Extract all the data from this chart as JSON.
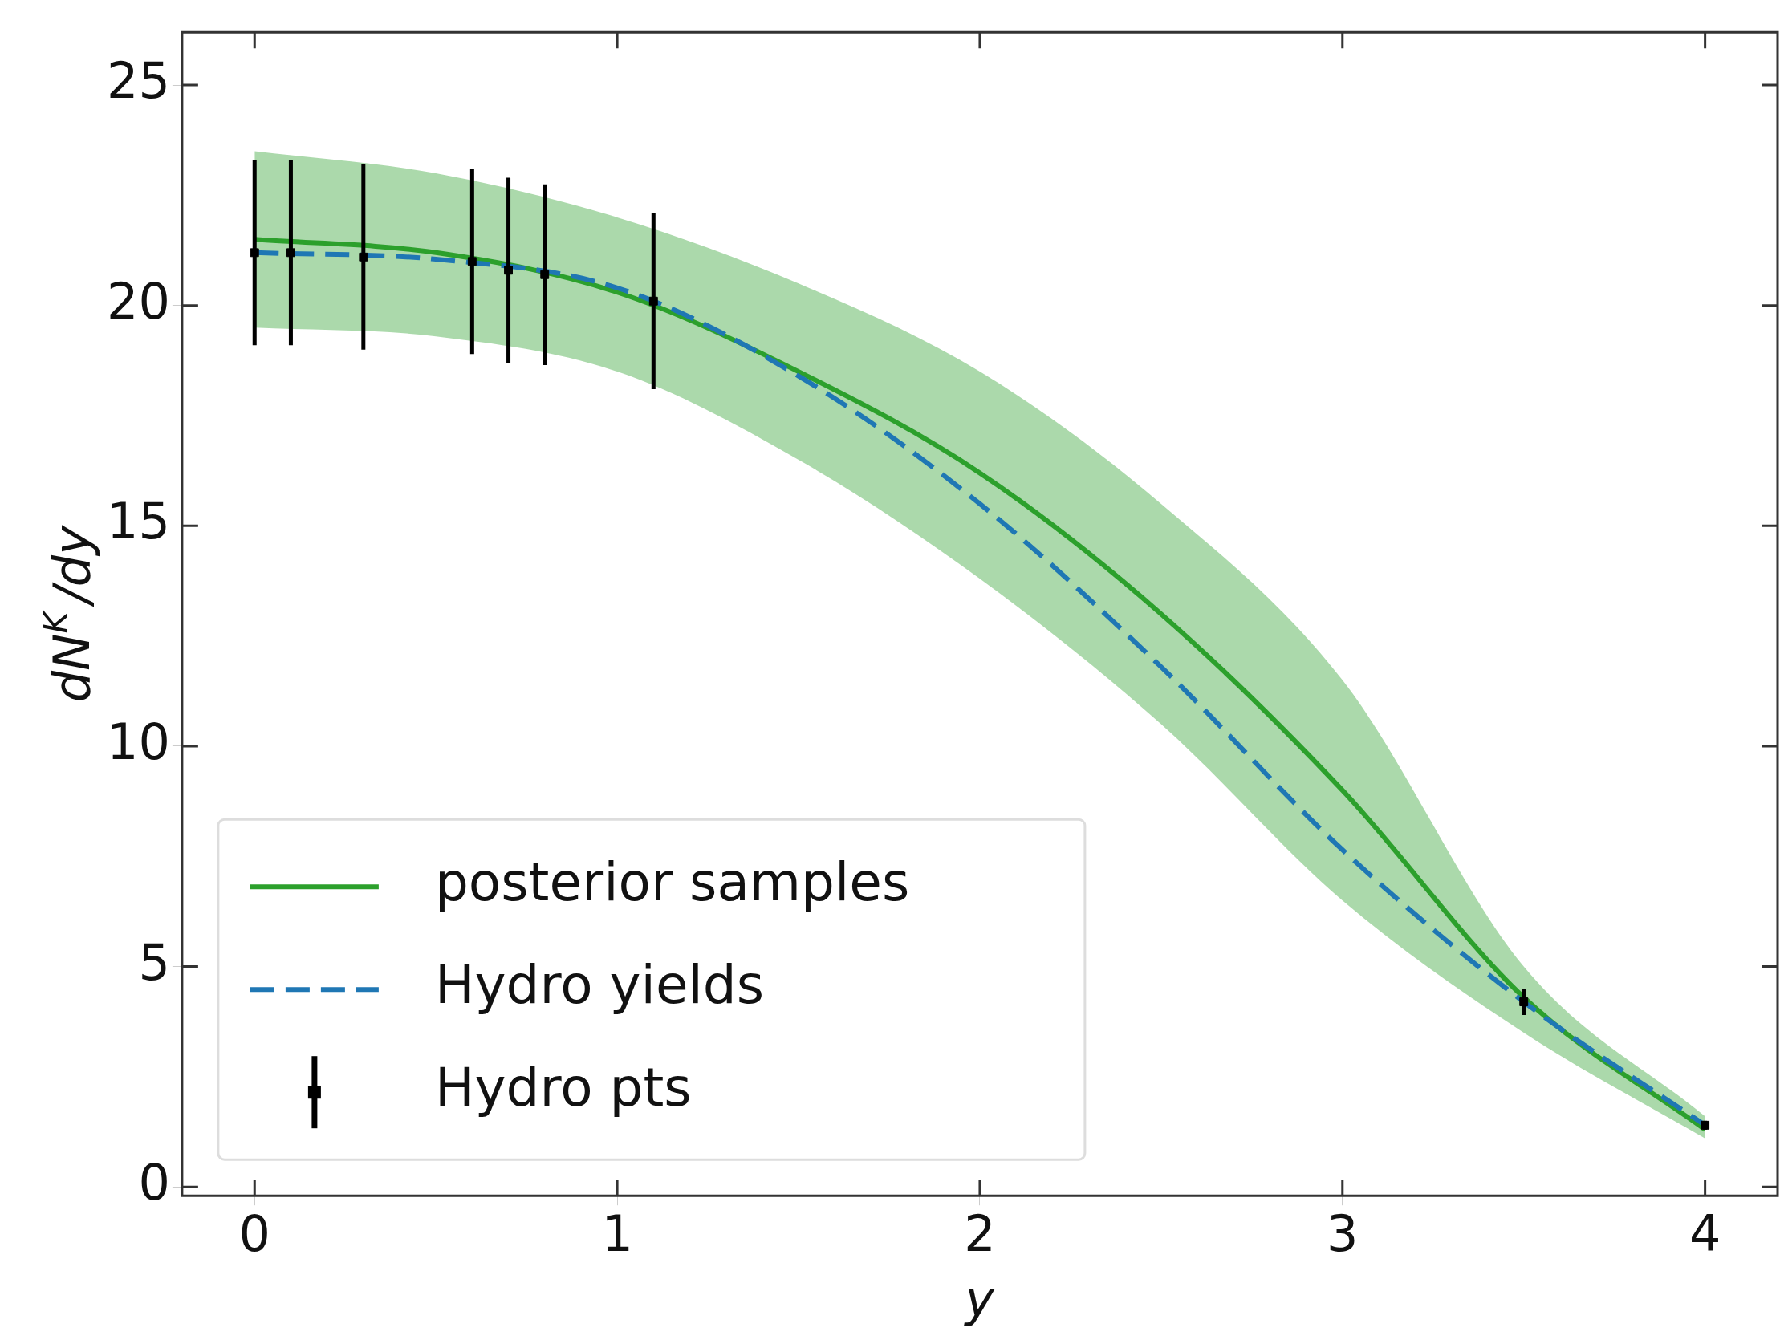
{
  "chart_data": {
    "type": "line",
    "xlabel": "y",
    "ylabel": "dN$^{K}$/dy",
    "xlim": [
      -0.2,
      4.2
    ],
    "ylim": [
      -0.2,
      26.2
    ],
    "xticks": [
      0,
      1,
      2,
      3,
      4
    ],
    "yticks": [
      0,
      5,
      10,
      15,
      20,
      25
    ],
    "grid": false,
    "legend": "bottom left",
    "series": [
      {
        "name": "posterior samples",
        "type": "line",
        "color": "#2ca02c",
        "x": [
          0,
          0.5,
          1,
          1.5,
          2,
          2.5,
          3,
          3.5,
          4
        ],
        "values": [
          21.5,
          21.2,
          20.3,
          18.5,
          16.2,
          13,
          9,
          4.3,
          1.3
        ],
        "lower": [
          19.5,
          19.3,
          18.5,
          16.5,
          13.8,
          10.5,
          6.5,
          3.5,
          1.1
        ],
        "upper": [
          23.5,
          23,
          22,
          20.5,
          18.5,
          15.5,
          11.5,
          5,
          1.6
        ]
      },
      {
        "name": "Hydro yields",
        "type": "line",
        "line_style": "dashed",
        "color": "#1f77b4",
        "x": [
          0,
          0.5,
          1,
          1.5,
          2,
          2.5,
          3,
          3.5,
          4
        ],
        "values": [
          21.2,
          21.05,
          20.4,
          18.4,
          15.5,
          11.8,
          7.65,
          4.2,
          1.4
        ]
      },
      {
        "name": "Hydro pts",
        "type": "scatter",
        "marker": "square",
        "color": "#000000",
        "x": [
          0,
          0.1,
          0.3,
          0.6,
          0.7,
          0.8,
          1.1,
          3.5,
          4
        ],
        "values": [
          21.2,
          21.2,
          21.1,
          21.0,
          20.8,
          20.7,
          20.1,
          4.2,
          1.4
        ],
        "errors": [
          2.1,
          2.1,
          2.1,
          2.1,
          2.1,
          2.05,
          2.0,
          0.3,
          0.1
        ]
      }
    ]
  }
}
